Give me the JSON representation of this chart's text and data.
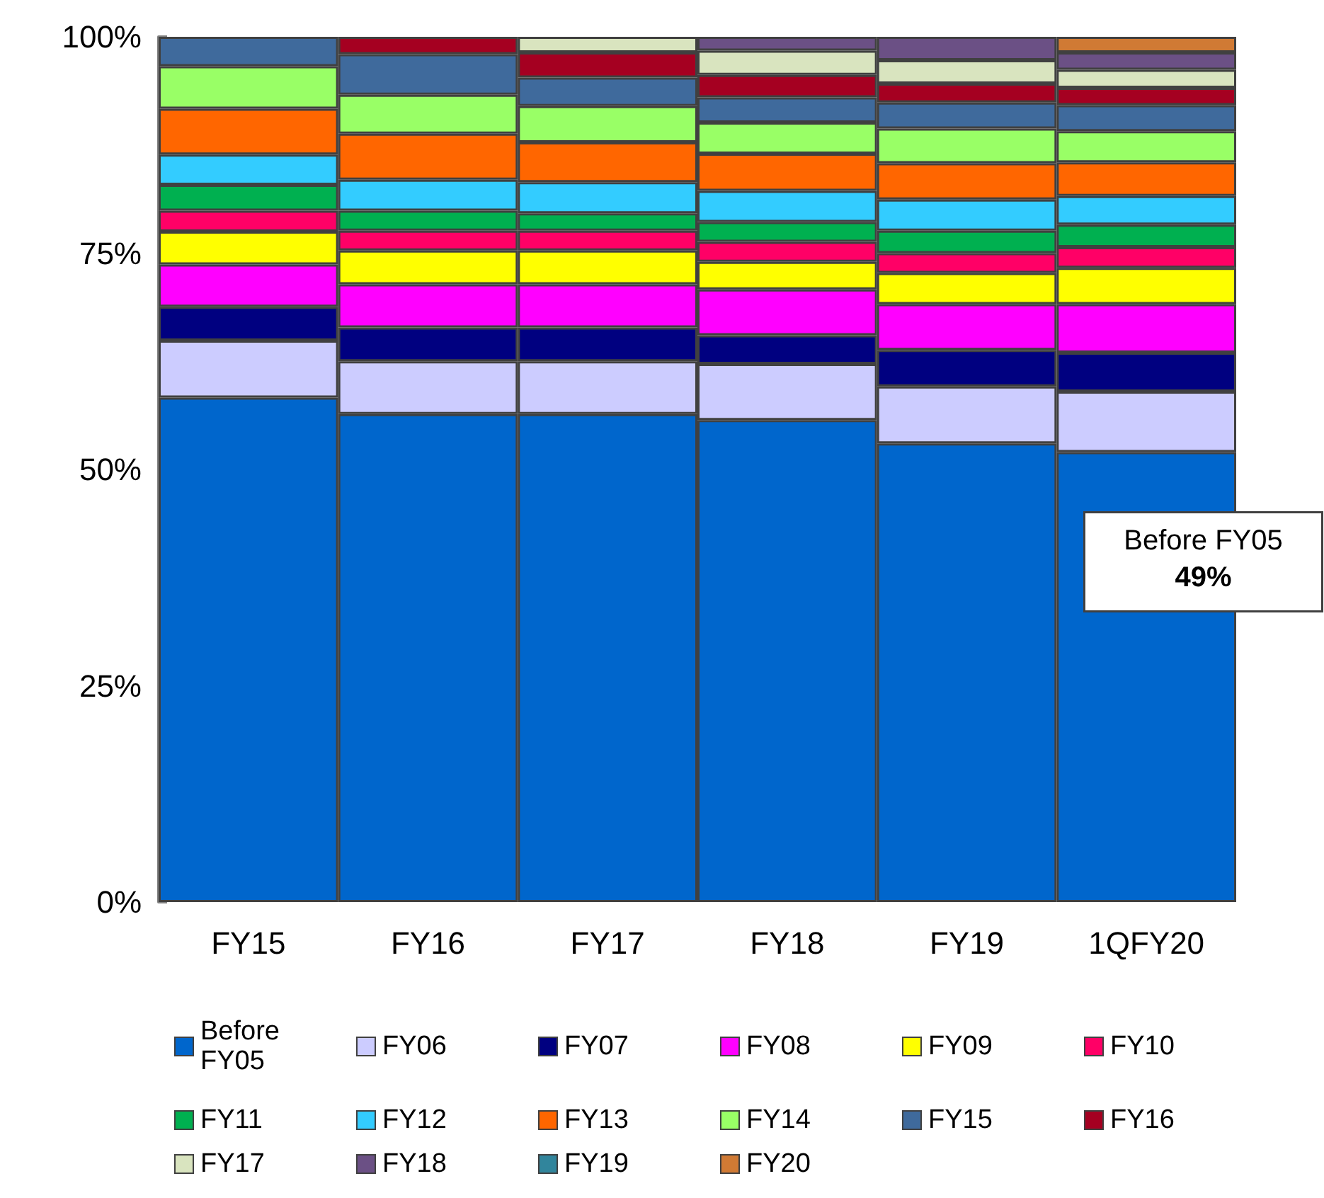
{
  "chart_data": {
    "type": "bar",
    "stacked": true,
    "categories": [
      "FY15",
      "FY16",
      "FY17",
      "FY18",
      "FY19",
      "1QFY20"
    ],
    "ylim": [
      0,
      100
    ],
    "yticks": [
      {
        "value": 0,
        "label": "0%"
      },
      {
        "value": 25,
        "label": "25%"
      },
      {
        "value": 50,
        "label": "50%"
      },
      {
        "value": 75,
        "label": "75%"
      },
      {
        "value": 100,
        "label": "100%"
      }
    ],
    "grid": false,
    "legend": "bottom",
    "annotations": [
      "Before FY05\n49%"
    ],
    "series": [
      {
        "name": "Before FY05",
        "color": "#0066cc",
        "values": [
          58.3,
          56.4,
          56.4,
          55.7,
          53.0,
          52.0
        ]
      },
      {
        "name": "FY06",
        "color": "#ccccff",
        "values": [
          6.6,
          6.1,
          6.1,
          6.5,
          6.6,
          7.0
        ]
      },
      {
        "name": "FY07",
        "color": "#000080",
        "values": [
          3.9,
          3.9,
          3.9,
          3.3,
          4.2,
          4.5
        ]
      },
      {
        "name": "FY08",
        "color": "#ff00ff",
        "values": [
          4.9,
          5.0,
          5.0,
          5.3,
          5.3,
          5.6
        ]
      },
      {
        "name": "FY09",
        "color": "#ffff00",
        "values": [
          3.8,
          3.9,
          3.9,
          3.2,
          3.6,
          4.2
        ]
      },
      {
        "name": "FY10",
        "color": "#ff0066",
        "values": [
          2.4,
          2.3,
          2.3,
          2.3,
          2.3,
          2.4
        ]
      },
      {
        "name": "FY11",
        "color": "#00b050",
        "values": [
          3.0,
          2.3,
          2.0,
          2.3,
          2.6,
          2.6
        ]
      },
      {
        "name": "FY12",
        "color": "#33ccff",
        "values": [
          3.5,
          3.6,
          3.6,
          3.6,
          3.6,
          3.3
        ]
      },
      {
        "name": "FY13",
        "color": "#ff6600",
        "values": [
          5.3,
          5.3,
          4.6,
          4.3,
          4.2,
          3.9
        ]
      },
      {
        "name": "FY14",
        "color": "#99ff66",
        "values": [
          4.9,
          4.5,
          4.2,
          3.6,
          4.0,
          3.6
        ]
      },
      {
        "name": "FY15",
        "color": "#3f6a9c",
        "values": [
          3.4,
          4.7,
          3.3,
          2.9,
          3.0,
          3.0
        ]
      },
      {
        "name": "FY16",
        "color": "#a50021",
        "values": [
          null,
          2.0,
          2.9,
          2.6,
          2.2,
          2.0
        ]
      },
      {
        "name": "FY17",
        "color": "#d9e4bf",
        "values": [
          null,
          null,
          1.8,
          2.8,
          2.7,
          2.1
        ]
      },
      {
        "name": "FY18",
        "color": "#6b5085",
        "values": [
          null,
          null,
          null,
          1.6,
          2.7,
          2.0
        ]
      },
      {
        "name": "FY19",
        "color": "#31859c",
        "values": [
          null,
          null,
          null,
          null,
          null,
          null
        ]
      },
      {
        "name": "FY20",
        "color": "#d07a34",
        "values": [
          null,
          null,
          null,
          null,
          null,
          1.8
        ]
      }
    ]
  }
}
